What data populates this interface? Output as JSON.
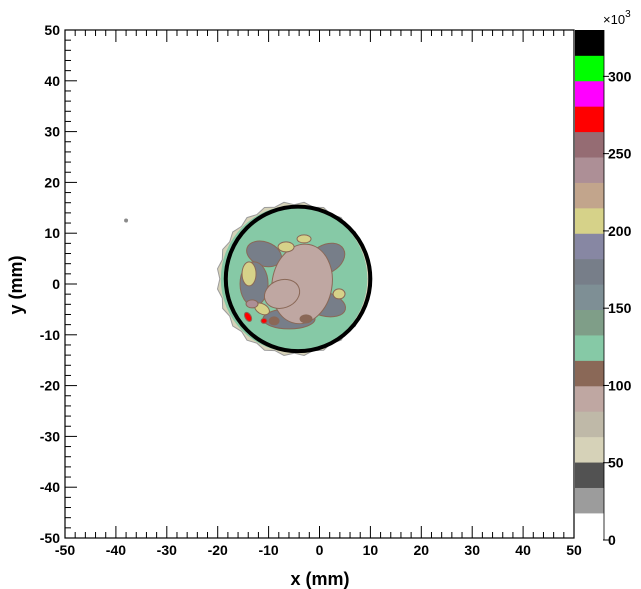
{
  "chart_data": {
    "type": "heatmap",
    "title": "",
    "xlabel": "x (mm)",
    "ylabel": "y (mm)",
    "xlim": [
      -50,
      50
    ],
    "ylim": [
      -50,
      50
    ],
    "x_ticks": [
      "-50",
      "-40",
      "-30",
      "-20",
      "-10",
      "0",
      "10",
      "20",
      "30",
      "40",
      "50"
    ],
    "y_ticks": [
      "50",
      "40",
      "30",
      "20",
      "10",
      "0",
      "-10",
      "-20",
      "-30",
      "-40",
      "-50"
    ],
    "grid": false,
    "colorbar": {
      "range": [
        0,
        330000
      ],
      "multiplier_base": "×10",
      "multiplier_exp": "3",
      "tick_labels": [
        "0",
        "50",
        "100",
        "150",
        "200",
        "250",
        "300"
      ],
      "tick_values": [
        0,
        50000,
        100000,
        150000,
        200000,
        250000,
        300000
      ],
      "colors": [
        "#9c9c9c",
        "#525252",
        "#d6d2b8",
        "#bfb9a8",
        "#bfa7a2",
        "#8a6857",
        "#86c9a6",
        "#7f9e88",
        "#7e8f95",
        "#777e89",
        "#8787a3",
        "#d6d289",
        "#c2a58c",
        "#ad8f96",
        "#956c73",
        "#ff0000",
        "#ff00ff",
        "#00ff00",
        "#000000"
      ]
    },
    "beam_spot": {
      "center": [
        -5,
        1
      ],
      "radius_mm": 14,
      "outline_color": "#000000",
      "regions": [
        {
          "level": 110000,
          "color": "#86c9a6"
        },
        {
          "level": 140000,
          "color": "#777e89"
        },
        {
          "level": 90000,
          "color": "#bfa7a2"
        },
        {
          "level": 200000,
          "color": "#d6d289"
        },
        {
          "level": 100000,
          "color": "#8a6857"
        },
        {
          "level": 280000,
          "color": "#ff0000"
        }
      ]
    },
    "stray_point": {
      "x": -38,
      "y": 12.5,
      "color": "#8a8a8a"
    }
  }
}
